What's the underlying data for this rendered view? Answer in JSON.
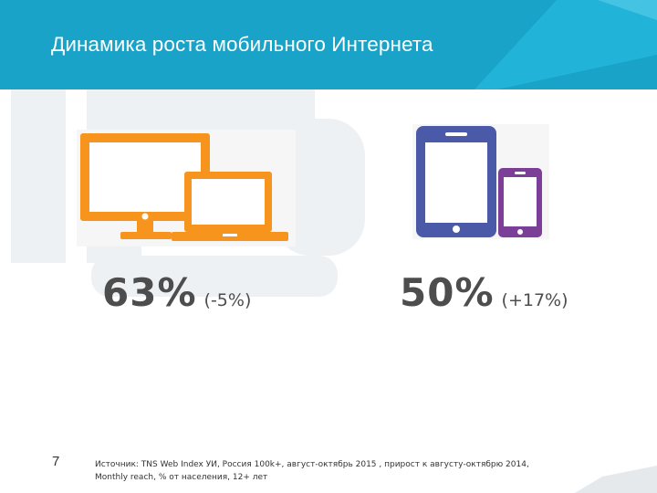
{
  "slide": {
    "title": "Динамика роста мобильного Интернета",
    "page_number": "7",
    "colors": {
      "header": "#1aa3c8",
      "header_stripe": "#22b3d8",
      "desktop_devices": "#f7941d",
      "mobile_devices": "#4b5aa8",
      "phone": "#7b3f98",
      "text": "#4d4d4d"
    }
  },
  "stats": {
    "desktop": {
      "icon": "desktop-laptop-icon",
      "value": "63%",
      "change": "(-5%)"
    },
    "mobile": {
      "icon": "tablet-phone-icon",
      "value": "50%",
      "change": "(+17%)"
    }
  },
  "footer": {
    "source_line1": "Источник: TNS Web Index УИ, Россия 100k+, август-октябрь 2015 , прирост к августу-октябрю 2014,",
    "source_line2": "Monthly reach, % от населения, 12+ лет"
  }
}
